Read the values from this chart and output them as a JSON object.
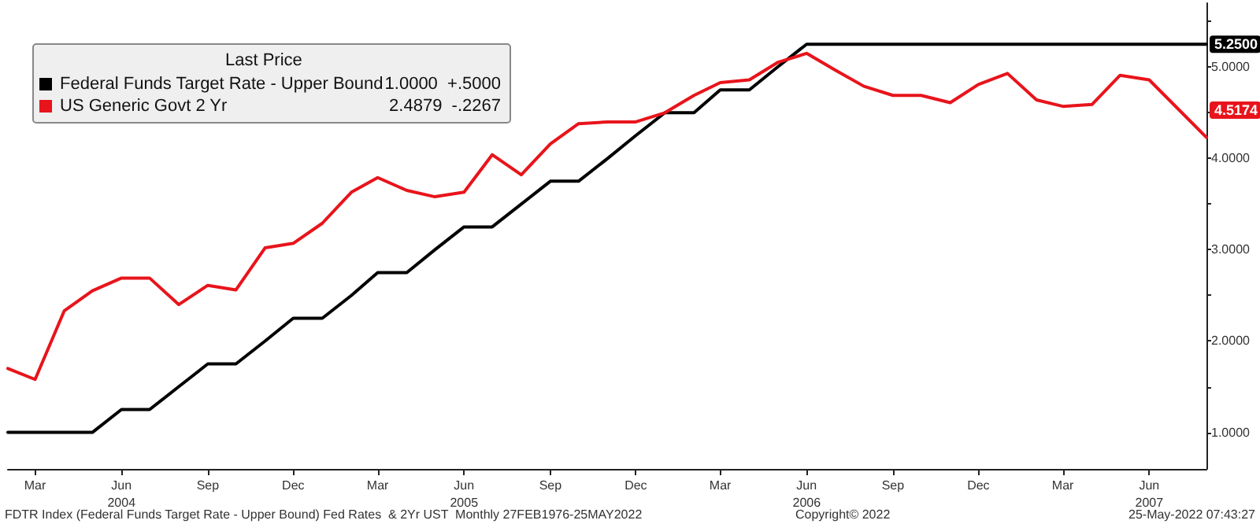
{
  "chart_data": {
    "type": "line",
    "legend_title": "Last Price",
    "legend": "top left",
    "grid": false,
    "marker": "none",
    "line_style": "solid",
    "x": [
      "2004-02",
      "2004-03",
      "2004-04",
      "2004-05",
      "2004-06",
      "2004-07",
      "2004-08",
      "2004-09",
      "2004-10",
      "2004-11",
      "2004-12",
      "2005-01",
      "2005-02",
      "2005-03",
      "2005-04",
      "2005-05",
      "2005-06",
      "2005-07",
      "2005-08",
      "2005-09",
      "2005-10",
      "2005-11",
      "2005-12",
      "2006-01",
      "2006-02",
      "2006-03",
      "2006-04",
      "2006-05",
      "2006-06",
      "2006-07",
      "2006-08",
      "2006-09",
      "2006-10",
      "2006-11",
      "2006-12",
      "2007-01",
      "2007-02",
      "2007-03",
      "2007-04",
      "2007-05",
      "2007-06",
      "2007-07",
      "2007-08"
    ],
    "series": [
      {
        "name": "Federal Funds Target Rate - Upper Bound",
        "color": "#000000",
        "values": [
          1.0,
          1.0,
          1.0,
          1.0,
          1.25,
          1.25,
          1.5,
          1.75,
          1.75,
          2.0,
          2.25,
          2.25,
          2.5,
          2.75,
          2.75,
          3.0,
          3.25,
          3.25,
          3.5,
          3.75,
          3.75,
          4.0,
          4.25,
          4.5,
          4.5,
          4.75,
          4.75,
          5.0,
          5.25,
          5.25,
          5.25,
          5.25,
          5.25,
          5.25,
          5.25,
          5.25,
          5.25,
          5.25,
          5.25,
          5.25,
          5.25,
          5.25,
          5.25
        ]
      },
      {
        "name": "US Generic Govt 2 Yr",
        "color": "#e8141b",
        "values": [
          1.7,
          1.58,
          2.33,
          2.55,
          2.69,
          2.69,
          2.4,
          2.61,
          2.56,
          3.02,
          3.07,
          3.29,
          3.63,
          3.79,
          3.65,
          3.58,
          3.63,
          4.04,
          3.82,
          4.16,
          4.38,
          4.4,
          4.4,
          4.5,
          4.69,
          4.83,
          4.86,
          5.05,
          5.15,
          4.97,
          4.79,
          4.69,
          4.69,
          4.61,
          4.81,
          4.93,
          4.64,
          4.57,
          4.59,
          4.91,
          4.86,
          null,
          4.23
        ]
      }
    ],
    "xlim": [
      "2004-02",
      "2007-08"
    ],
    "xticks": [
      {
        "value": "2004-03",
        "label": "Mar"
      },
      {
        "value": "2004-06",
        "label": "Jun\n2004"
      },
      {
        "value": "2004-09",
        "label": "Sep"
      },
      {
        "value": "2004-12",
        "label": "Dec"
      },
      {
        "value": "2005-03",
        "label": "Mar"
      },
      {
        "value": "2005-06",
        "label": "Jun\n2005"
      },
      {
        "value": "2005-09",
        "label": "Sep"
      },
      {
        "value": "2005-12",
        "label": "Dec"
      },
      {
        "value": "2006-03",
        "label": "Mar"
      },
      {
        "value": "2006-06",
        "label": "Jun\n2006"
      },
      {
        "value": "2006-09",
        "label": "Sep"
      },
      {
        "value": "2006-12",
        "label": "Dec"
      },
      {
        "value": "2007-03",
        "label": "Mar"
      },
      {
        "value": "2007-06",
        "label": "Jun\n2007"
      }
    ],
    "ylim": [
      0.6,
      5.7
    ],
    "yticks": [
      {
        "value": 1,
        "label": "1.0000"
      },
      {
        "value": 1.5,
        "label": null
      },
      {
        "value": 2,
        "label": "2.0000"
      },
      {
        "value": 2.5,
        "label": null
      },
      {
        "value": 3,
        "label": "3.0000"
      },
      {
        "value": 3.5,
        "label": null
      },
      {
        "value": 4,
        "label": "4.0000"
      },
      {
        "value": 4.5,
        "label": null
      },
      {
        "value": 5,
        "label": "5.0000"
      },
      {
        "value": 5.5,
        "label": null
      }
    ],
    "annotations": [
      {
        "text": "5.2500",
        "x": "2007-08",
        "y": 5.25
      },
      "4.5174",
      "1.0000  +.5000",
      "2.4879  -.2267",
      "FDTR Index (Federal Funds Target Rate - Upper Bound) Fed Rates  & 2Yr UST  Monthly 27FEB1976-25MAY2022",
      "Copyright© 2022",
      "25-May-2022 07:43:27"
    ]
  }
}
